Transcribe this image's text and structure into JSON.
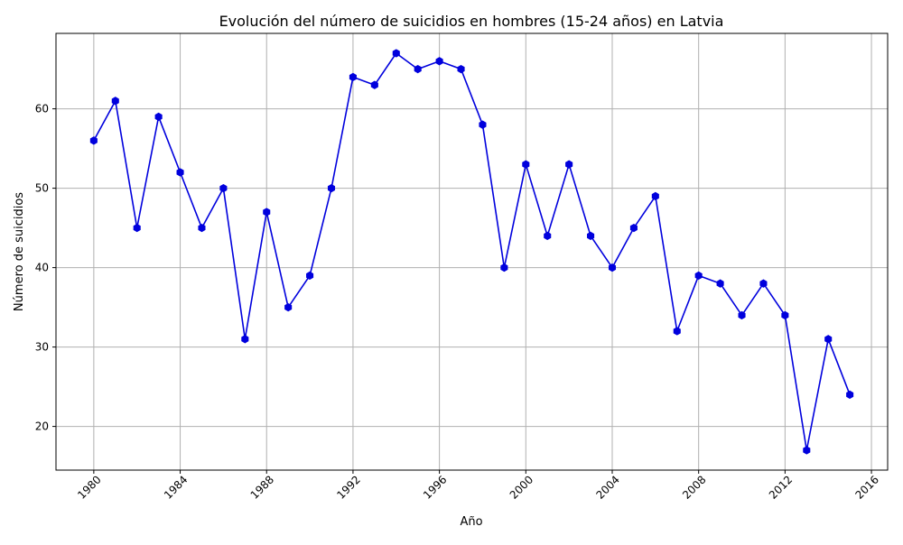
{
  "colors": {
    "line": "#0000dd",
    "grid": "#b0b0b0",
    "axis": "#000000",
    "background": "#ffffff"
  },
  "chart_data": {
    "type": "line",
    "title": "Evolución del número de suicidios en hombres (15-24 años) en Latvia",
    "xlabel": "Año",
    "ylabel": "Número de suicidios",
    "xlim": [
      1978.25,
      2016.75
    ],
    "ylim": [
      14.5,
      69.5
    ],
    "x_ticks": [
      1980,
      1984,
      1988,
      1992,
      1996,
      2000,
      2004,
      2008,
      2012,
      2016
    ],
    "x_tick_labels": [
      "1980",
      "1984",
      "1988",
      "1992",
      "1996",
      "2000",
      "2004",
      "2008",
      "2012",
      "2016"
    ],
    "y_ticks": [
      20,
      30,
      40,
      50,
      60
    ],
    "y_tick_labels": [
      "20",
      "30",
      "40",
      "50",
      "60"
    ],
    "grid": true,
    "marker": "hexagon",
    "x": [
      1980,
      1981,
      1982,
      1983,
      1984,
      1985,
      1986,
      1987,
      1988,
      1989,
      1990,
      1991,
      1992,
      1993,
      1994,
      1995,
      1996,
      1997,
      1998,
      1999,
      2000,
      2001,
      2002,
      2003,
      2004,
      2005,
      2006,
      2007,
      2008,
      2009,
      2010,
      2011,
      2012,
      2013,
      2014,
      2015
    ],
    "y": [
      56,
      61,
      45,
      59,
      52,
      45,
      50,
      31,
      47,
      35,
      39,
      50,
      64,
      63,
      67,
      65,
      66,
      65,
      58,
      40,
      53,
      44,
      53,
      44,
      40,
      45,
      49,
      32,
      39,
      38,
      34,
      38,
      34,
      17,
      31,
      24
    ]
  }
}
